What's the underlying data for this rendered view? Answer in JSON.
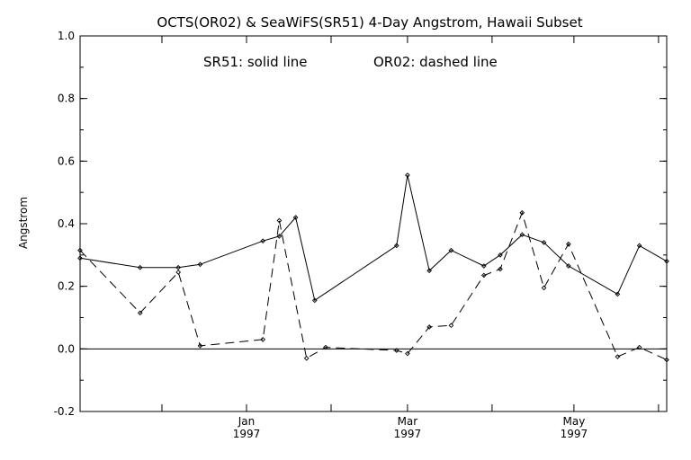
{
  "chart_data": {
    "type": "line",
    "title": "OCTS(OR02) & SeaWiFS(SR51) 4-Day Angstrom, Hawaii Subset",
    "annotation_solid": "SR51: solid line",
    "annotation_dashed": "OR02: dashed line",
    "xlabel": "",
    "ylabel": "Angstrom",
    "ylim": [
      -0.2,
      1.0
    ],
    "yticks": [
      {
        "value": -0.2,
        "label": "-0.2"
      },
      {
        "value": 0.0,
        "label": "0.0"
      },
      {
        "value": 0.2,
        "label": "0.2"
      },
      {
        "value": 0.4,
        "label": "0.4"
      },
      {
        "value": 0.6,
        "label": "0.6"
      },
      {
        "value": 0.8,
        "label": "0.8"
      },
      {
        "value": 1.0,
        "label": "1.0"
      }
    ],
    "xlim": [
      "1996-11-01",
      "1997-06-04"
    ],
    "xticks": [
      {
        "date": "1996-12-01",
        "label": ""
      },
      {
        "date": "1997-01-01",
        "label": "Jan",
        "year": "1997"
      },
      {
        "date": "1997-02-01",
        "label": ""
      },
      {
        "date": "1997-03-01",
        "label": "Mar",
        "year": "1997"
      },
      {
        "date": "1997-04-01",
        "label": ""
      },
      {
        "date": "1997-05-01",
        "label": "May",
        "year": "1997"
      },
      {
        "date": "1997-06-01",
        "label": ""
      }
    ],
    "series": [
      {
        "name": "SR51",
        "style": "solid",
        "points": [
          [
            "1996-11-01",
            0.29
          ],
          [
            "1996-11-23",
            0.26
          ],
          [
            "1996-12-07",
            0.26
          ],
          [
            "1996-12-15",
            0.27
          ],
          [
            "1997-01-07",
            0.345
          ],
          [
            "1997-01-13",
            0.36
          ],
          [
            "1997-01-19",
            0.42
          ],
          [
            "1997-01-26",
            0.155
          ],
          [
            "1997-02-25",
            0.33
          ],
          [
            "1997-03-01",
            0.555
          ],
          [
            "1997-03-09",
            0.25
          ],
          [
            "1997-03-17",
            0.315
          ],
          [
            "1997-03-29",
            0.265
          ],
          [
            "1997-04-04",
            0.3
          ],
          [
            "1997-04-12",
            0.365
          ],
          [
            "1997-04-20",
            0.34
          ],
          [
            "1997-04-29",
            0.265
          ],
          [
            "1997-05-17",
            0.175
          ],
          [
            "1997-05-25",
            0.33
          ],
          [
            "1997-06-04",
            0.28
          ]
        ]
      },
      {
        "name": "OR02",
        "style": "dashed",
        "points": [
          [
            "1996-11-01",
            0.315
          ],
          [
            "1996-11-23",
            0.115
          ],
          [
            "1996-12-07",
            0.245
          ],
          [
            "1996-12-15",
            0.01
          ],
          [
            "1997-01-07",
            0.03
          ],
          [
            "1997-01-13",
            0.41
          ],
          [
            "1997-01-23",
            -0.03
          ],
          [
            "1997-01-30",
            0.005
          ],
          [
            "1997-02-25",
            -0.005
          ],
          [
            "1997-03-01",
            -0.015
          ],
          [
            "1997-03-09",
            0.07
          ],
          [
            "1997-03-17",
            0.075
          ],
          [
            "1997-03-29",
            0.235
          ],
          [
            "1997-04-04",
            0.255
          ],
          [
            "1997-04-12",
            0.435
          ],
          [
            "1997-04-20",
            0.195
          ],
          [
            "1997-04-29",
            0.335
          ],
          [
            "1997-05-17",
            -0.025
          ],
          [
            "1997-05-25",
            0.005
          ],
          [
            "1997-06-04",
            -0.035
          ]
        ]
      }
    ],
    "reference_line": 0.0,
    "grid": false,
    "legend": "none"
  }
}
